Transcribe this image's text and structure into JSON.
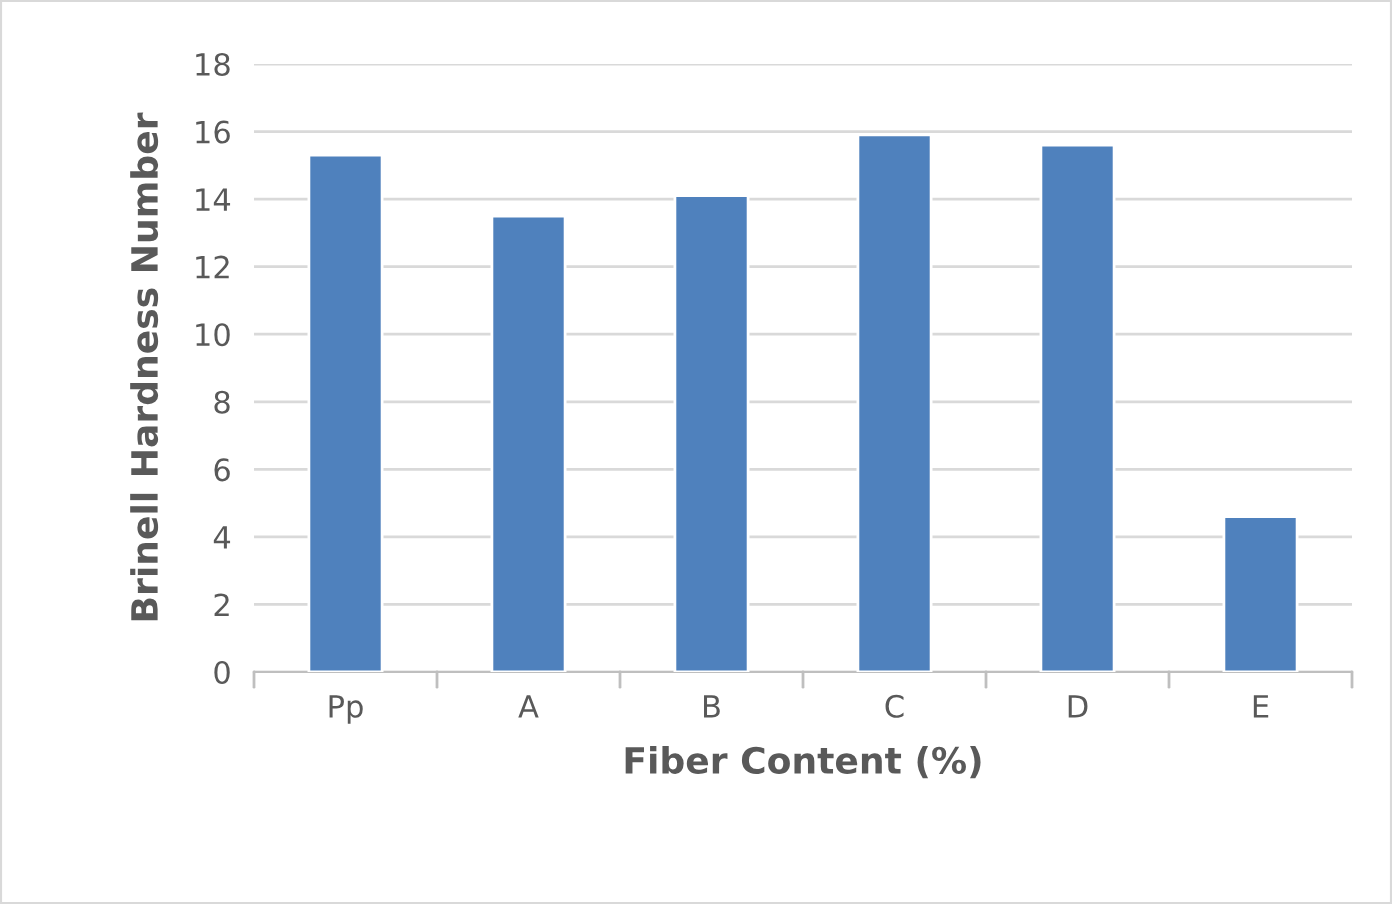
{
  "chart_data": {
    "type": "bar",
    "xlabel": "Fiber Content (%)",
    "ylabel": "Brinell Hardness Number",
    "categories": [
      "Pp",
      "A",
      "B",
      "C",
      "D",
      "E"
    ],
    "values": [
      15.3,
      13.5,
      14.1,
      15.9,
      15.6,
      4.6
    ],
    "color": "#4f81bd",
    "ylim": [
      0,
      18
    ],
    "yticks": [
      0,
      2,
      4,
      6,
      8,
      10,
      12,
      14,
      16,
      18
    ],
    "grid": "y"
  }
}
